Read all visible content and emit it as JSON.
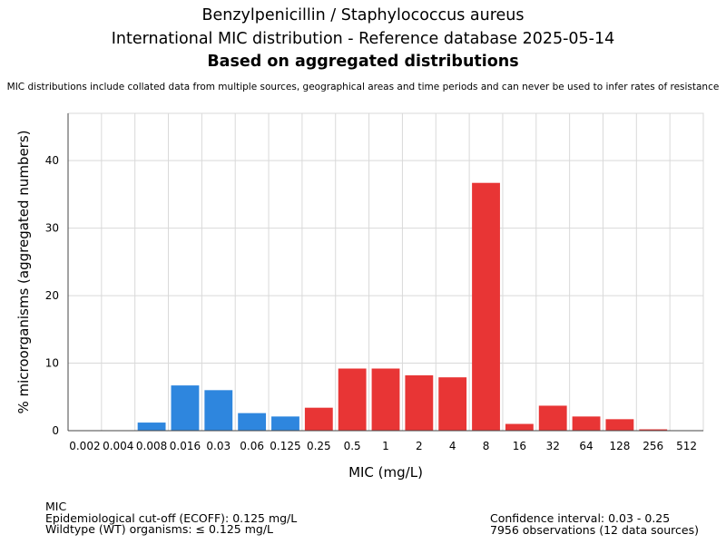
{
  "header": {
    "title_line1": "Benzylpenicillin / Staphylococcus aureus",
    "title_line2": "International MIC distribution - Reference database 2025-05-14",
    "title_line3": "Based on aggregated distributions",
    "subtitle": "MIC distributions include collated data from multiple sources, geographical areas and time periods and can never be used to infer rates of resistance"
  },
  "colors": {
    "wildtype": "#2e86de",
    "non_wildtype": "#e83535",
    "grid": "#d9d9d9"
  },
  "chart_data": {
    "type": "bar",
    "xlabel": "MIC (mg/L)",
    "ylabel": "% microorganisms (aggregated numbers)",
    "categories": [
      "0.002",
      "0.004",
      "0.008",
      "0.016",
      "0.03",
      "0.06",
      "0.125",
      "0.25",
      "0.5",
      "1",
      "2",
      "4",
      "8",
      "16",
      "32",
      "64",
      "128",
      "256",
      "512"
    ],
    "values": [
      0,
      0,
      1.2,
      6.7,
      6.0,
      2.6,
      2.1,
      3.4,
      9.2,
      9.2,
      8.2,
      7.9,
      36.7,
      1.0,
      3.7,
      2.1,
      1.7,
      0.2,
      0
    ],
    "wildtype": [
      true,
      true,
      true,
      true,
      true,
      true,
      true,
      false,
      false,
      false,
      false,
      false,
      false,
      false,
      false,
      false,
      false,
      false,
      false
    ],
    "ylim": [
      0,
      47
    ],
    "yticks": [
      0,
      10,
      20,
      30,
      40
    ],
    "grid": true
  },
  "footer": {
    "left": {
      "line1": "MIC",
      "line2": "Epidemiological cut-off (ECOFF): 0.125 mg/L",
      "line3": "Wildtype (WT) organisms: ≤ 0.125 mg/L"
    },
    "right": {
      "line1": "Confidence interval: 0.03 - 0.25",
      "line2": "7956 observations (12 data sources)"
    }
  }
}
